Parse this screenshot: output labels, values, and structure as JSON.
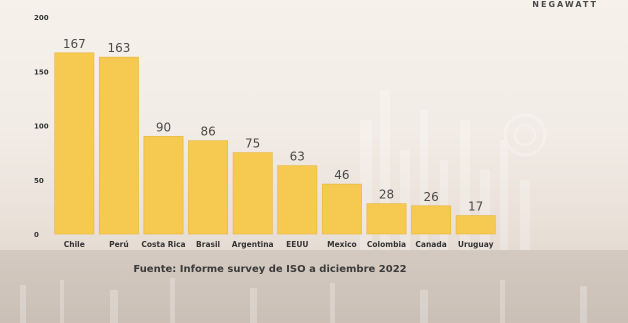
{
  "brand": "NEGAWATT",
  "source_note": "Fuente: Informe survey de ISO a diciembre 2022",
  "colors": {
    "bar": "#f6c950",
    "bar_edge": "#e9b43a",
    "label": "#4a4a4a",
    "tick": "#333333"
  },
  "chart_data": {
    "type": "bar",
    "categories": [
      "Chile",
      "Perú",
      "Costa Rica",
      "Brasil",
      "Argentina",
      "EEUU",
      "Mexico",
      "Colombia",
      "Canada",
      "Uruguay"
    ],
    "values": [
      167,
      163,
      90,
      86,
      75,
      63,
      46,
      28,
      26,
      17
    ],
    "title": "",
    "xlabel": "",
    "ylabel": "",
    "ylim": [
      0,
      200
    ],
    "yticks": [
      0,
      50,
      100,
      150,
      200
    ],
    "grid": false,
    "legend": "none",
    "data_labels": true
  }
}
